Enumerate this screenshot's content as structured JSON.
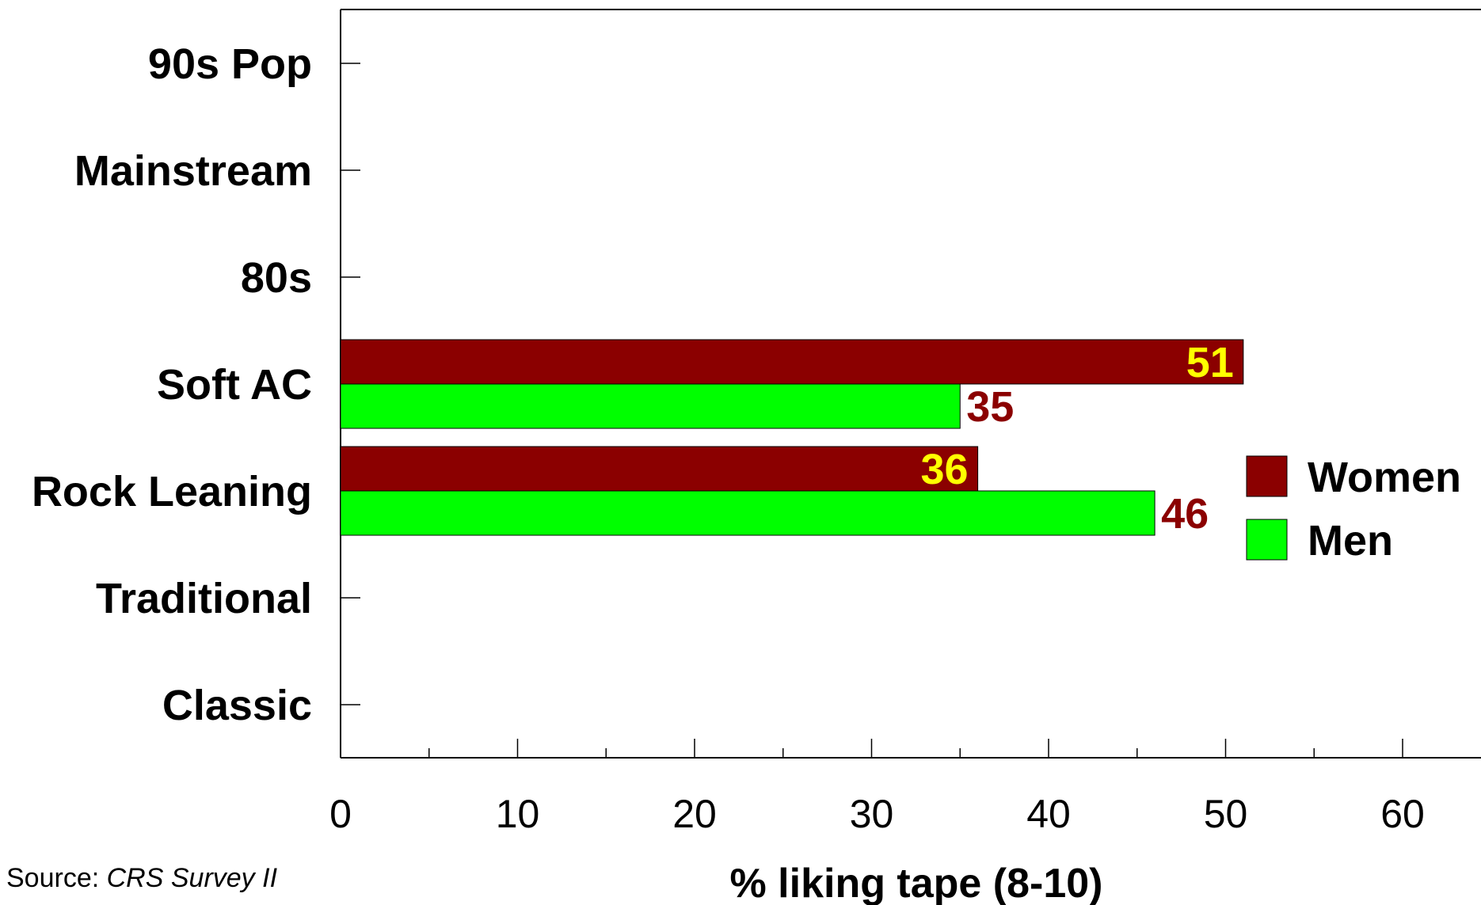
{
  "chart_data": {
    "type": "bar",
    "orientation": "horizontal",
    "categories": [
      "90s Pop",
      "Mainstream",
      "80s",
      "Soft AC",
      "Rock Leaning",
      "Traditional",
      "Classic"
    ],
    "series": [
      {
        "name": "Women",
        "color": "#8b0000",
        "label_color": "#ffff00",
        "values": [
          null,
          null,
          null,
          51,
          36,
          null,
          null
        ]
      },
      {
        "name": "Men",
        "color": "#00ff00",
        "label_color": "#8b0000",
        "values": [
          null,
          null,
          null,
          35,
          46,
          null,
          null
        ]
      }
    ],
    "xlabel": "% liking tape (8-10)",
    "xlim": [
      0,
      60
    ],
    "xticks": [
      0,
      10,
      20,
      30,
      40,
      50,
      60
    ],
    "grid": false,
    "legend_position": "right"
  },
  "source": {
    "prefix": "Source: ",
    "name": "CRS Survey II"
  }
}
